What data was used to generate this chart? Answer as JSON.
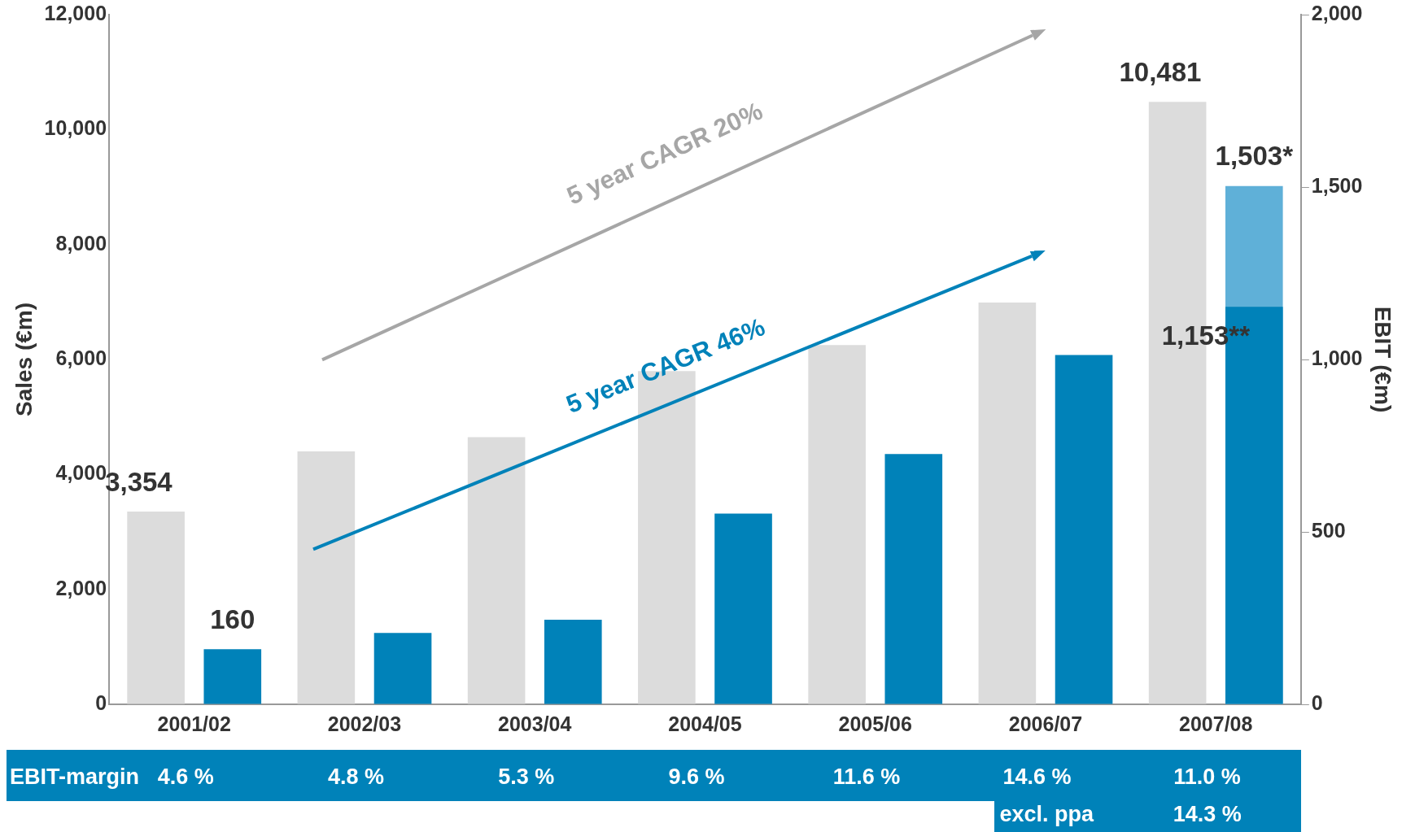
{
  "chart_data": {
    "type": "bar",
    "categories": [
      "2001/02",
      "2002/03",
      "2003/04",
      "2004/05",
      "2005/06",
      "2006/07",
      "2007/08"
    ],
    "ylabel": "Sales (€m)",
    "y2label": "EBIT (€m)",
    "legend": false,
    "grid": false,
    "ylim": [
      0,
      12000
    ],
    "yticks": [
      0,
      {
        "value": 2000,
        "label": "2,000"
      },
      {
        "value": 4000,
        "label": "4,000"
      },
      {
        "value": 6000,
        "label": "6,000"
      },
      {
        "value": 8000,
        "label": "8,000"
      },
      {
        "value": 10000,
        "label": "10,000"
      },
      {
        "value": 12000,
        "label": "12,000"
      }
    ],
    "y2lim": [
      0,
      2000
    ],
    "y2ticks": [
      0,
      500,
      {
        "value": 1000,
        "label": "1,000"
      },
      {
        "value": 1500,
        "label": "1,500"
      },
      {
        "value": 2000,
        "label": "2,000"
      }
    ],
    "series": [
      {
        "color": "#dcdcdc",
        "values": [
          3354,
          4400,
          4650,
          5800,
          6250,
          6990,
          10481
        ],
        "value_labels": [
          "3,354",
          null,
          null,
          null,
          null,
          null,
          "10,481"
        ]
      },
      {
        "color": "#0082b9",
        "axis": "y2",
        "values": [
          160,
          207,
          245,
          553,
          726,
          1013,
          1153
        ],
        "value_labels": [
          "160",
          null,
          null,
          null,
          null,
          null,
          "1,153**"
        ]
      },
      {
        "color": "#5fb0d8",
        "axis": "y2",
        "values": [
          null,
          null,
          null,
          null,
          null,
          null,
          1503
        ],
        "value_labels": [
          null,
          null,
          null,
          null,
          null,
          null,
          "1,503*"
        ]
      }
    ],
    "annotations": [
      "5 year CAGR 20%",
      "5 year CAGR 46%",
      "EBIT-margin",
      "4.6 %",
      "4.8 %",
      "5.3 %",
      "9.6 %",
      "11.6 %",
      "14.6 %",
      "11.0 %",
      "excl. ppa",
      "14.3 %"
    ]
  }
}
